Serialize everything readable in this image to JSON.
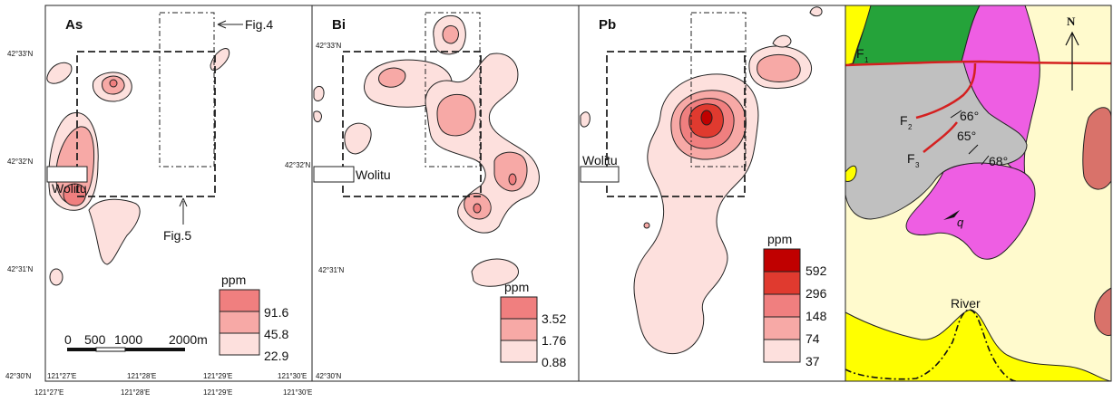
{
  "panels": {
    "as": {
      "title": "As",
      "legend_unit": "ppm",
      "legend_values": [
        "91.6",
        "45.8",
        "22.9"
      ]
    },
    "bi": {
      "title": "Bi",
      "legend_unit": "ppm",
      "legend_values": [
        "3.52",
        "1.76",
        "0.88"
      ]
    },
    "pb": {
      "title": "Pb",
      "legend_unit": "ppm",
      "legend_values": [
        "592",
        "296",
        "148",
        "74",
        "37"
      ]
    }
  },
  "lat_labels": {
    "as": [
      "42°33'N",
      "42°32'N",
      "42°31'N",
      "42°30'N"
    ],
    "bi": [
      "42°33'N",
      "42°32'N",
      "42°31'N",
      "42°30'N"
    ]
  },
  "lon_labels": {
    "top_row": [
      "121°27'E",
      "121°28'E",
      "121°29'E",
      "121°30'E"
    ],
    "bottom_row": [
      "121°27'E",
      "121°28'E",
      "121°29'E",
      "121°30'E"
    ]
  },
  "place_label": "Wolitu",
  "annotations": {
    "fig4": "Fig.4",
    "fig5": "Fig.5"
  },
  "scale_bar": {
    "labels": [
      "0",
      "500",
      "1000",
      "2000m"
    ]
  },
  "geology": {
    "north": "N",
    "river": "River",
    "faults": {
      "f1": "F",
      "f1_sub": "1",
      "f2": "F",
      "f2_sub": "2",
      "f3": "F",
      "f3_sub": "3"
    },
    "dips": [
      "66°",
      "65°",
      "68°"
    ],
    "symbol_q": "q"
  },
  "colors": {
    "c1": "#fde0dd",
    "c2": "#f7a9a6",
    "c3": "#f07f7f",
    "c4": "#e03a2f",
    "c5": "#c00000",
    "gray": "#c0c0c0",
    "pink": "#ee5ee3",
    "green": "#25a33a",
    "yellow": "#ffff00",
    "cream": "#fffacd",
    "brown": "#d9726a",
    "fault": "#d42020"
  }
}
